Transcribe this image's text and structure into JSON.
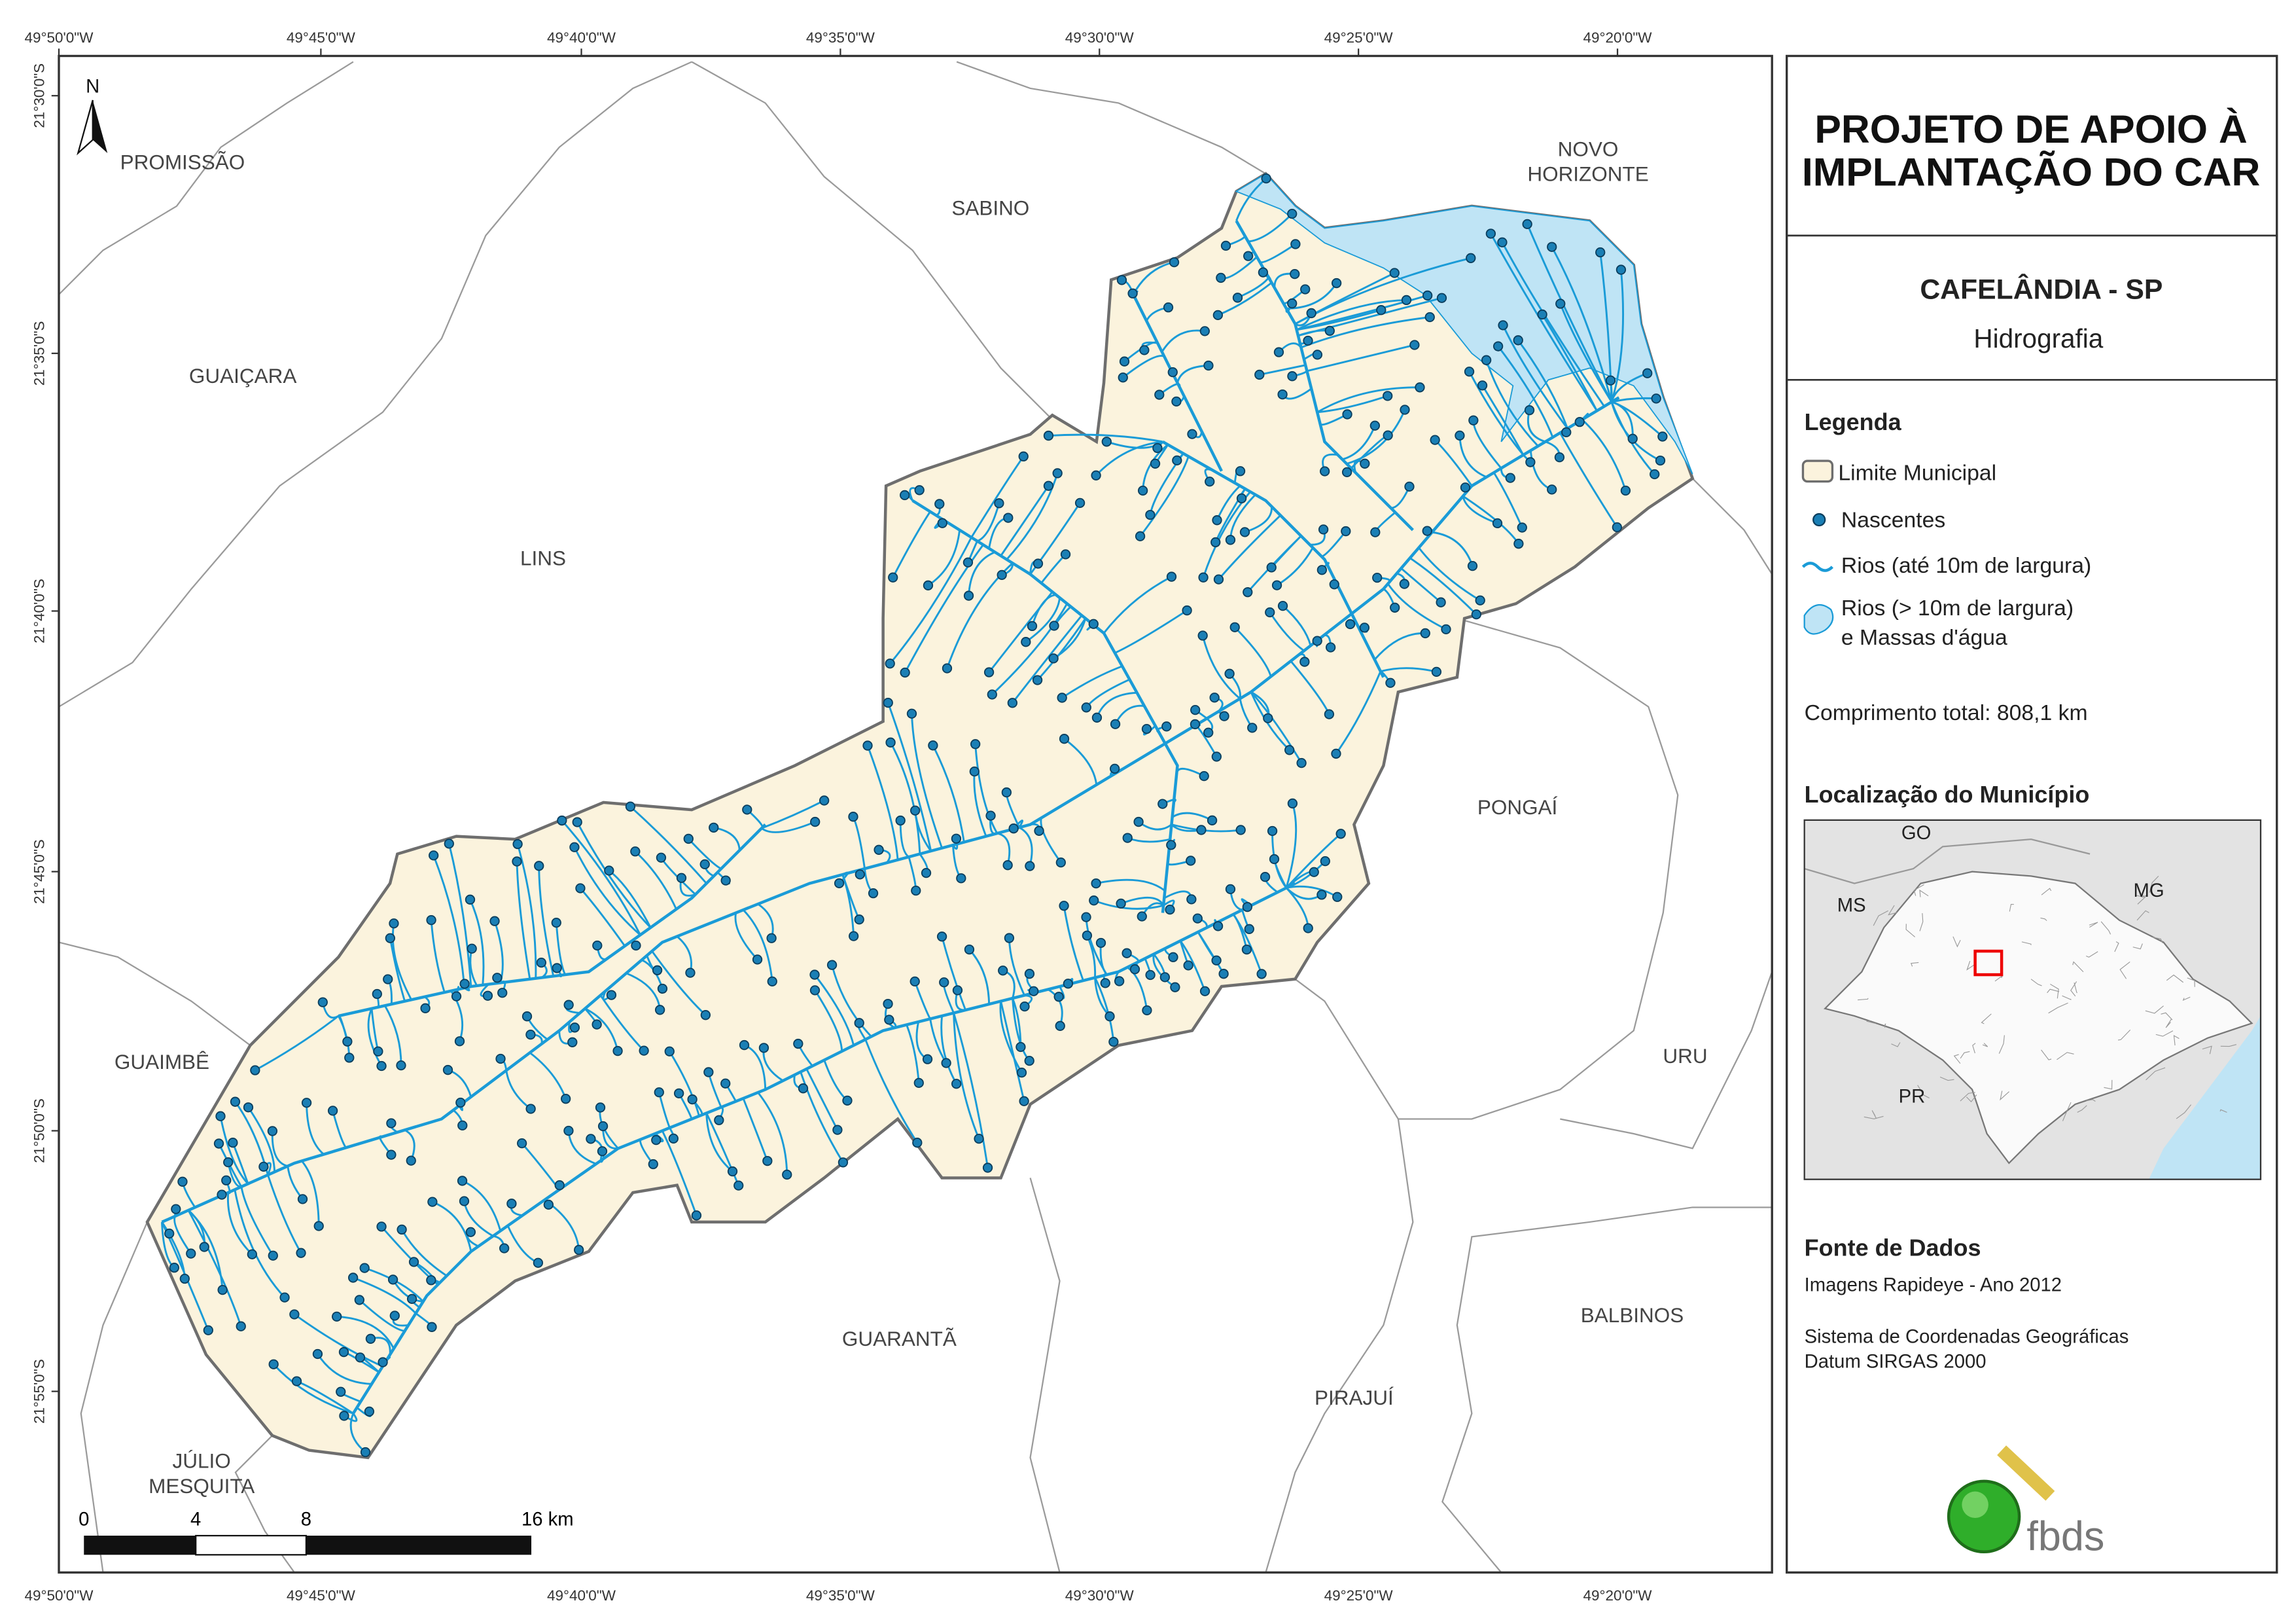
{
  "header": {
    "title": [
      "PROJETO DE APOIO À",
      "IMPLANTAÇÃO DO CAR"
    ],
    "municipality": "CAFELÂNDIA - SP",
    "theme": "Hidrografia"
  },
  "legend": {
    "title": "Legenda",
    "items": [
      [
        "Limite Municipal"
      ],
      [
        "Nascentes"
      ],
      [
        "Rios (até 10m de largura)"
      ],
      [
        "Rios (> 10m de largura)",
        "e Massas d'água"
      ]
    ],
    "total_length": "Comprimento total: 808,1 km"
  },
  "location": {
    "title": "Localização do Município",
    "labels": [
      "GO",
      "MS",
      "MG",
      "PR"
    ]
  },
  "sources": {
    "title": "Fonte de Dados",
    "lines": [
      "Imagens Rapideye - Ano 2012",
      "Sistema de Coordenadas Geográficas",
      "Datum SIRGAS 2000"
    ]
  },
  "logo": "fbds",
  "map": {
    "north": "N",
    "lon_labels": [
      "49°50'0\"W",
      "49°45'0\"W",
      "49°40'0\"W",
      "49°35'0\"W",
      "49°30'0\"W",
      "49°25'0\"W",
      "49°20'0\"W"
    ],
    "lat_labels": [
      "21°30'0\"S",
      "21°35'0\"S",
      "21°40'0\"S",
      "21°45'0\"S",
      "21°50'0\"S",
      "21°55'0\"S"
    ],
    "places": [
      [
        "PROMISSÃO"
      ],
      [
        "SABINO"
      ],
      [
        "NOVO",
        "HORIZONTE"
      ],
      [
        "GUAIÇARA"
      ],
      [
        "LINS"
      ],
      [
        "PONGAÍ"
      ],
      [
        "GUAIMBÊ"
      ],
      [
        "URU"
      ],
      [
        "GUARANTÃ"
      ],
      [
        "BALBINOS"
      ],
      [
        "PIRAJUÍ"
      ],
      [
        "JÚLIO",
        "MESQUITA"
      ]
    ],
    "scale": [
      "0",
      "4",
      "8",
      "16 km"
    ]
  }
}
